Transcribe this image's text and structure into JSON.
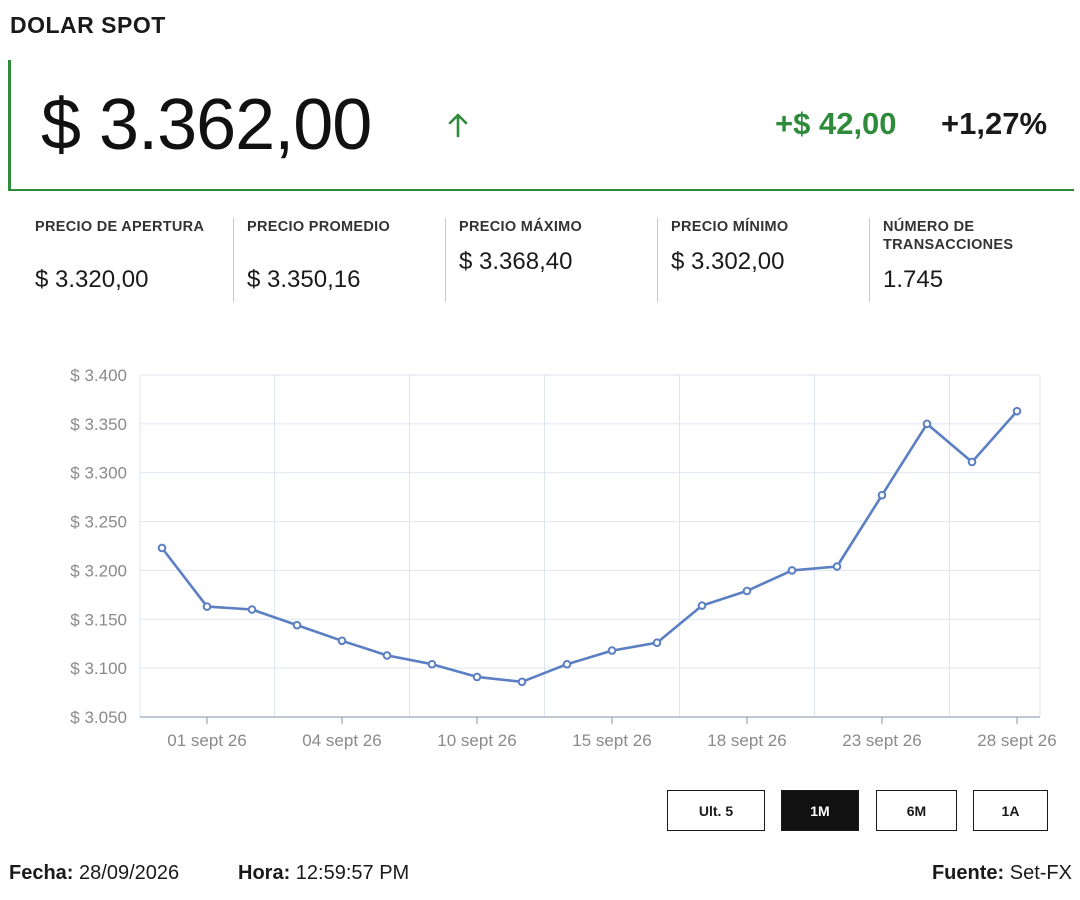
{
  "title": "DOLAR SPOT",
  "price": "$ 3.362,00",
  "change_abs": "+$ 42,00",
  "change_pct": "+1,27%",
  "colors": {
    "accent_green": "#2e8b3a",
    "line": "#5b7fc2",
    "grid": "#dde5f0"
  },
  "icons": {
    "trend": "arrow-up-icon"
  },
  "stats": [
    {
      "label": "PRECIO DE APERTURA",
      "value": "$ 3.320,00"
    },
    {
      "label": "PRECIO PROMEDIO",
      "value": "$ 3.350,16"
    },
    {
      "label": "PRECIO MÁXIMO",
      "value": "$ 3.368,40"
    },
    {
      "label": "PRECIO MÍNIMO",
      "value": "$ 3.302,00"
    },
    {
      "label": "NÚMERO DE TRANSACCIONES",
      "value": "1.745"
    }
  ],
  "chart_data": {
    "type": "line",
    "ylim": [
      3050,
      3400
    ],
    "y_ticks": [
      3400,
      3350,
      3300,
      3250,
      3200,
      3150,
      3100,
      3050
    ],
    "y_tick_labels": [
      "$ 3.400",
      "$ 3.350",
      "$ 3.300",
      "$ 3.250",
      "$ 3.200",
      "$ 3.150",
      "$ 3.100",
      "$ 3.050"
    ],
    "x_tick_labels": [
      "01 sept 26",
      "04 sept 26",
      "10 sept 26",
      "15 sept 26",
      "18 sept 26",
      "23 sept 26",
      "28 sept 26"
    ],
    "x_tick_positions": [
      1,
      4,
      7,
      10,
      13,
      16,
      19
    ],
    "grid": true,
    "series": [
      {
        "values": [
          3223,
          3163,
          3160,
          3144,
          3128,
          3113,
          3104,
          3091,
          3086,
          3104,
          3118,
          3126,
          3164,
          3179,
          3200,
          3204,
          3277,
          3350,
          3311,
          3363
        ]
      }
    ]
  },
  "ranges": [
    {
      "label": "Ult. 5",
      "active": false
    },
    {
      "label": "1M",
      "active": true
    },
    {
      "label": "6M",
      "active": false
    },
    {
      "label": "1A",
      "active": false
    }
  ],
  "footer": {
    "date_label": "Fecha:",
    "date_value": "28/09/2026",
    "time_label": "Hora:",
    "time_value": "12:59:57 PM",
    "source_label": "Fuente:",
    "source_value": "Set-FX"
  }
}
